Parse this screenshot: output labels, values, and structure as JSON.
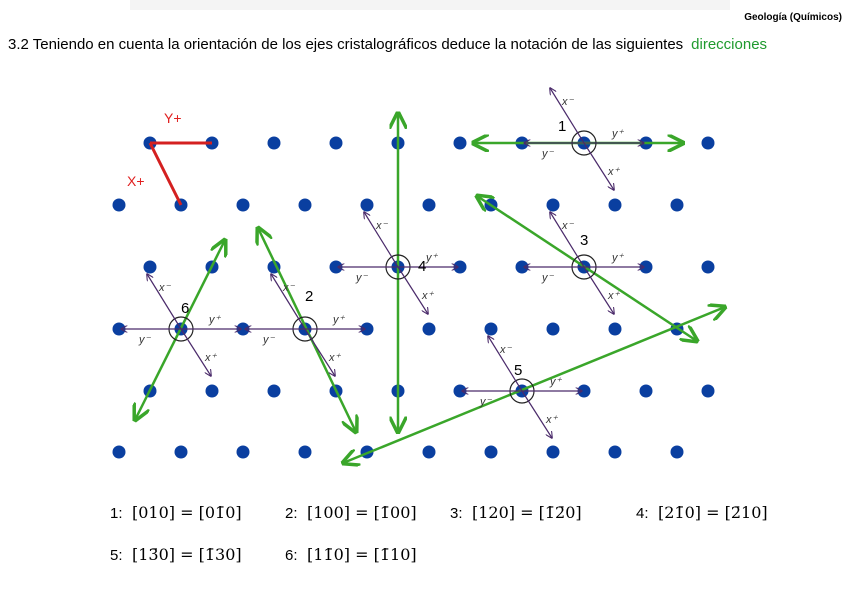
{
  "header": {
    "course": "Geología (Químicos)"
  },
  "question": {
    "text": "3.2 Teniendo en cuenta la orientación de los ejes cristalográficos deduce la notación de las siguientes",
    "highlight": "direcciones"
  },
  "axes": {
    "y": "Y+",
    "x": "X+"
  },
  "local_axes": {
    "x_minus": "x⁻",
    "x_plus": "x⁺",
    "y_minus": "y⁻",
    "y_plus": "y⁺"
  },
  "directions": [
    {
      "label": "1"
    },
    {
      "label": "2"
    },
    {
      "label": "3"
    },
    {
      "label": "4"
    },
    {
      "label": "5"
    },
    {
      "label": "6"
    }
  ],
  "answers": [
    {
      "number": "1:",
      "text": "[010] = [01̄0]"
    },
    {
      "number": "2:",
      "text": "[100] = [1̄00]"
    },
    {
      "number": "3:",
      "text": "[120] = [1̄2̄0]"
    },
    {
      "number": "4:",
      "text": "[21̄0] = [2̄10]"
    },
    {
      "number": "5:",
      "text": "[13̄0] = [1̄30]"
    },
    {
      "number": "6:",
      "text": "[11̄0] = [1̄10]"
    }
  ]
}
